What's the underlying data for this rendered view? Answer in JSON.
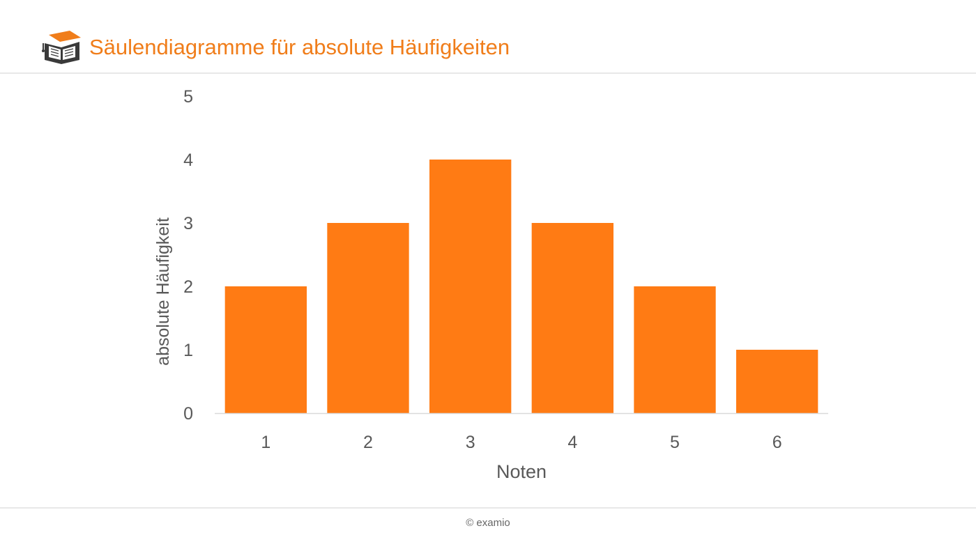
{
  "header": {
    "title": "Säulendiagramme für absolute Häufigkeiten",
    "logo_icon": "graduation-cap-book-icon"
  },
  "footer": {
    "copyright": "© examio"
  },
  "colors": {
    "accent": "#f07d1a",
    "bar": "#ff7b14",
    "axis_text": "#595959"
  },
  "chart_data": {
    "type": "bar",
    "categories": [
      "1",
      "2",
      "3",
      "4",
      "5",
      "6"
    ],
    "values": [
      2,
      3,
      4,
      3,
      2,
      1
    ],
    "title": "",
    "xlabel": "Noten",
    "ylabel": "absolute Häufigkeit",
    "ylim": [
      0,
      5
    ],
    "yticks": [
      "0",
      "1",
      "2",
      "3",
      "4",
      "5"
    ],
    "grid": false,
    "legend": "none"
  }
}
